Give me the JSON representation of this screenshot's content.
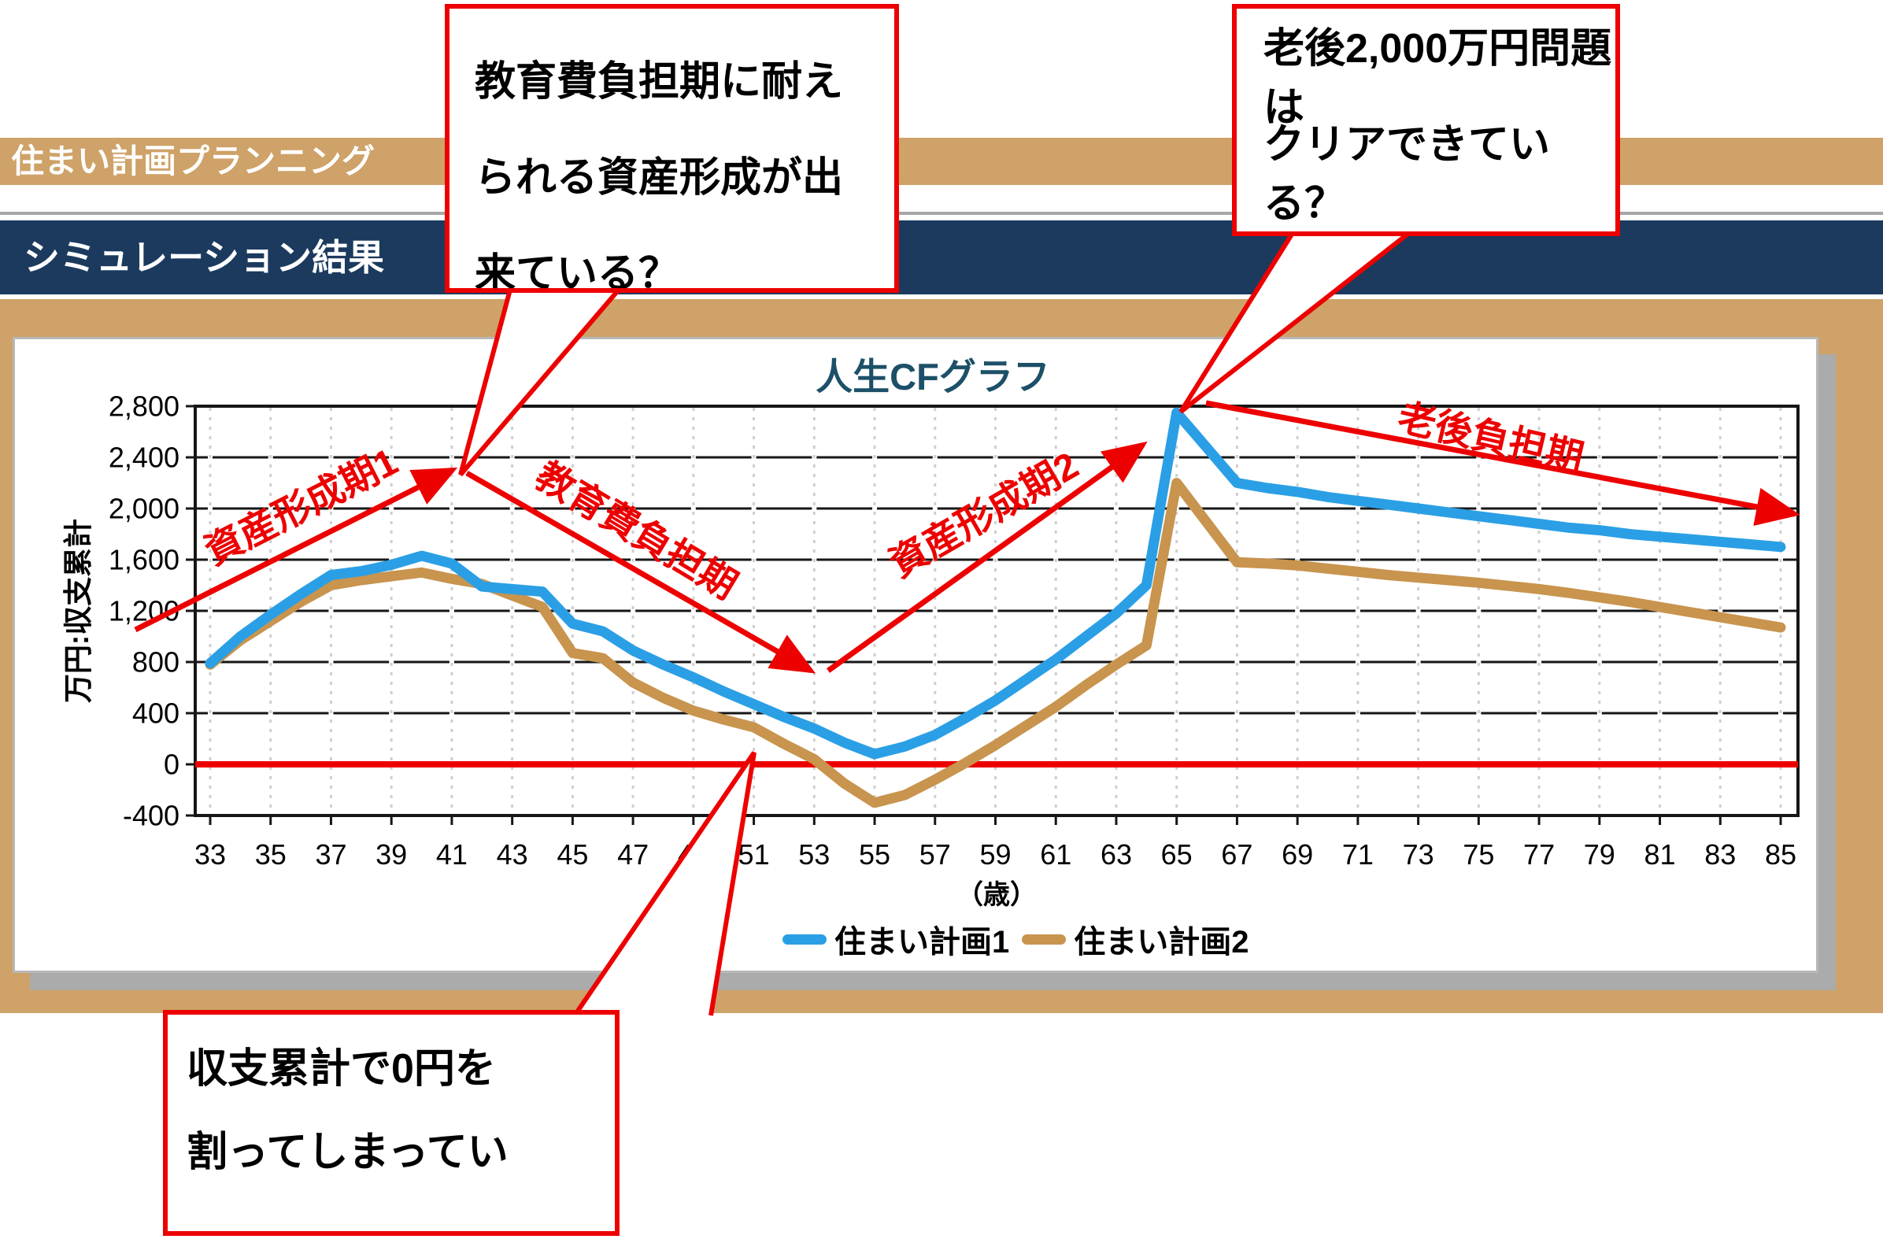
{
  "header": {
    "app_title": "住まい計画プランニング",
    "section_title": "シミュレーション結果",
    "bar_color": "#CEA268",
    "navy_color": "#1B3A5E"
  },
  "chart_data": {
    "type": "line",
    "title": "人生CFグラフ",
    "title_color": "#1D5068",
    "xlabel": "（歳）",
    "ylabel": "万円:収支累計",
    "x_start": 33,
    "x_end": 85,
    "ylim": [
      -400,
      2800
    ],
    "ytick_step": 400,
    "ytick_labels": [
      "-400",
      "0",
      "400",
      "800",
      "1,200",
      "1,600",
      "2,000",
      "2,400",
      "2,800"
    ],
    "xtick_labels": [
      "33",
      "35",
      "37",
      "39",
      "41",
      "43",
      "45",
      "47",
      "49",
      "51",
      "53",
      "55",
      "57",
      "59",
      "61",
      "63",
      "65",
      "67",
      "69",
      "71",
      "73",
      "75",
      "77",
      "79",
      "81",
      "83",
      "85"
    ],
    "grid": true,
    "legend_position": "bottom",
    "zero_line_color": "#ED0000",
    "x": [
      33,
      34,
      35,
      36,
      37,
      38,
      39,
      40,
      41,
      42,
      43,
      44,
      45,
      46,
      47,
      48,
      49,
      50,
      51,
      52,
      53,
      54,
      55,
      56,
      57,
      58,
      59,
      60,
      61,
      62,
      63,
      64,
      65,
      66,
      67,
      68,
      69,
      70,
      71,
      72,
      73,
      74,
      75,
      76,
      77,
      78,
      79,
      80,
      81,
      82,
      83,
      84,
      85
    ],
    "series": [
      {
        "name": "住まい計画1",
        "color": "#2B9FE5",
        "values": [
          790,
          1000,
          1170,
          1330,
          1480,
          1510,
          1560,
          1630,
          1570,
          1390,
          1370,
          1350,
          1100,
          1040,
          890,
          780,
          680,
          570,
          470,
          370,
          280,
          170,
          80,
          140,
          230,
          360,
          500,
          660,
          820,
          1000,
          1180,
          1400,
          2750,
          2475,
          2200,
          2160,
          2130,
          2090,
          2060,
          2030,
          2000,
          1970,
          1940,
          1910,
          1880,
          1850,
          1830,
          1800,
          1780,
          1760,
          1740,
          1720,
          1700
        ]
      },
      {
        "name": "住まい計画2",
        "color": "#C8944E",
        "values": [
          780,
          970,
          1120,
          1270,
          1400,
          1440,
          1470,
          1500,
          1450,
          1410,
          1320,
          1230,
          870,
          830,
          640,
          520,
          420,
          350,
          290,
          160,
          40,
          -150,
          -300,
          -240,
          -120,
          10,
          150,
          300,
          450,
          620,
          780,
          930,
          2200,
          1890,
          1580,
          1570,
          1555,
          1530,
          1505,
          1480,
          1460,
          1440,
          1420,
          1395,
          1370,
          1340,
          1305,
          1270,
          1230,
          1190,
          1150,
          1110,
          1070
        ]
      }
    ]
  },
  "legend": {
    "items": [
      {
        "label": "住まい計画1",
        "color": "#2B9FE5"
      },
      {
        "label": "住まい計画2",
        "color": "#C8944E"
      }
    ]
  },
  "annotations": {
    "color": "#ED0000",
    "phases": [
      {
        "label": "資産形成期1"
      },
      {
        "label": "教育費負担期"
      },
      {
        "label": "資産形成期2"
      },
      {
        "label": "老後負担期"
      }
    ],
    "callouts": [
      {
        "lines": [
          "教育費負担期に耐え",
          "られる資産形成が出",
          "来ている？"
        ]
      },
      {
        "lines": [
          "老後2,000万円問題は",
          "クリアできている？"
        ]
      },
      {
        "lines": [
          "収支累計で0円を",
          "割ってしまってい"
        ]
      }
    ]
  }
}
